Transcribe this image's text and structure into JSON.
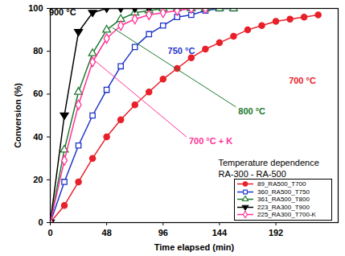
{
  "chart_data": {
    "type": "line",
    "x_label": "Time elapsed (min)",
    "y_label": "Conversion (%)",
    "xlim": [
      0,
      245
    ],
    "xticks": [
      0,
      48,
      96,
      144,
      192
    ],
    "ylim": [
      0,
      100
    ],
    "yticks": [
      0,
      20,
      40,
      60,
      80,
      100
    ],
    "grid": false,
    "legend": "bottom-right",
    "series": [
      {
        "name": "89_RA500_T700",
        "color": "#e8202a",
        "marker": "circle",
        "x": [
          0,
          12,
          24,
          36,
          48,
          60,
          72,
          84,
          96,
          108,
          120,
          132,
          144,
          156,
          168,
          180,
          192,
          204,
          216,
          228
        ],
        "values": [
          0,
          8,
          19,
          30,
          40,
          48,
          55,
          61,
          67,
          72,
          77,
          81,
          84,
          87,
          90,
          92,
          94,
          95,
          96,
          97
        ]
      },
      {
        "name": "360_RA500_T750",
        "color": "#1f35c8",
        "marker": "square-open",
        "x": [
          0,
          12,
          24,
          36,
          48,
          60,
          72,
          84,
          96,
          108,
          120,
          132,
          144,
          156
        ],
        "values": [
          0,
          19,
          36,
          50,
          62,
          73,
          82,
          88,
          92,
          96,
          97,
          99,
          100,
          100
        ]
      },
      {
        "name": "361_RA500_T800",
        "color": "#1e7a2e",
        "marker": "triangle-open",
        "x": [
          0,
          12,
          24,
          36,
          48,
          60,
          72,
          84,
          96,
          108,
          120,
          132,
          144,
          156
        ],
        "values": [
          0,
          34,
          61,
          79,
          90,
          95,
          98,
          99,
          100,
          100,
          100,
          100,
          100,
          100
        ]
      },
      {
        "name": "223_RA300_T900",
        "color": "#000000",
        "marker": "triangle-down",
        "x": [
          0,
          12,
          24,
          36,
          48,
          60,
          72,
          84
        ],
        "values": [
          0,
          50,
          89,
          98,
          100,
          100,
          100,
          100
        ]
      },
      {
        "name": "225_RA300_T700-K",
        "color": "#ff3399",
        "marker": "diamond-open",
        "x": [
          0,
          12,
          24,
          36,
          48,
          60,
          72,
          84,
          96,
          108,
          120,
          132
        ],
        "values": [
          0,
          29,
          55,
          75,
          86,
          92,
          95,
          97,
          98,
          99,
          100,
          100
        ]
      }
    ],
    "annotations": [
      {
        "text": "900 °C",
        "color": "#000000"
      },
      {
        "text": "750 °C",
        "color": "#1f35c8"
      },
      {
        "text": "800 °C",
        "color": "#1e7a2e"
      },
      {
        "text": "700 °C + K",
        "color": "#ff3399"
      },
      {
        "text": "700 °C",
        "color": "#e8202a"
      },
      {
        "text": "Temperature dependence",
        "color": "#000000"
      },
      {
        "text": "RA-300 - RA-500",
        "color": "#000000"
      }
    ]
  }
}
